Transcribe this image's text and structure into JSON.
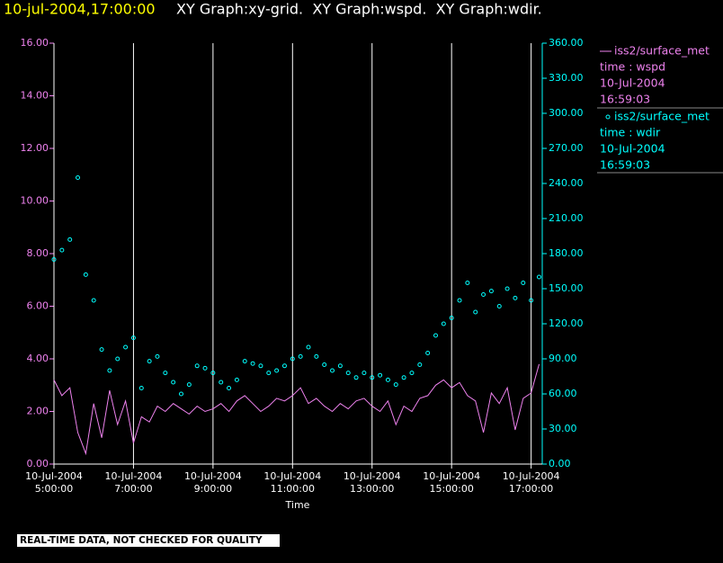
{
  "chart_data": {
    "type": "line_scatter_dual",
    "title_time": "10-jul-2004,17:00:00",
    "title": "XY Graph:xy-grid.  XY Graph:wspd.  XY Graph:wdir.",
    "xlabel": "Time",
    "note": "REAL-TIME DATA, NOT CHECKED FOR QUALITY",
    "xlim": [
      5,
      17.28
    ],
    "xticks": [
      {
        "value": 5,
        "label": "10-Jul-2004\n5:00:00"
      },
      {
        "value": 7,
        "label": "10-Jul-2004\n7:00:00"
      },
      {
        "value": 9,
        "label": "10-Jul-2004\n9:00:00"
      },
      {
        "value": 11,
        "label": "10-Jul-2004\n11:00:00"
      },
      {
        "value": 13,
        "label": "10-Jul-2004\n13:00:00"
      },
      {
        "value": 15,
        "label": "10-Jul-2004\n15:00:00"
      },
      {
        "value": 17,
        "label": "10-Jul-2004\n17:00:00"
      }
    ],
    "grid": "x",
    "ylim": [
      0,
      16
    ],
    "yticks": [
      {
        "value": 0,
        "label": "0.00"
      },
      {
        "value": 2,
        "label": "2.00"
      },
      {
        "value": 4,
        "label": "4.00"
      },
      {
        "value": 6,
        "label": "6.00"
      },
      {
        "value": 8,
        "label": "8.00"
      },
      {
        "value": 10,
        "label": "10.00"
      },
      {
        "value": 12,
        "label": "12.00"
      },
      {
        "value": 14,
        "label": "14.00"
      },
      {
        "value": 16,
        "label": "16.00"
      }
    ],
    "y2lim": [
      0,
      360
    ],
    "y2ticks": [
      {
        "value": 0,
        "label": "0.00"
      },
      {
        "value": 30,
        "label": "30.00"
      },
      {
        "value": 60,
        "label": "60.00"
      },
      {
        "value": 90,
        "label": "90.00"
      },
      {
        "value": 120,
        "label": "120.00"
      },
      {
        "value": 150,
        "label": "150.00"
      },
      {
        "value": 180,
        "label": "180.00"
      },
      {
        "value": 210,
        "label": "210.00"
      },
      {
        "value": 240,
        "label": "240.00"
      },
      {
        "value": 270,
        "label": "270.00"
      },
      {
        "value": 300,
        "label": "300.00"
      },
      {
        "value": 330,
        "label": "330.00"
      },
      {
        "value": 360,
        "label": "360.00"
      }
    ],
    "x": [
      5.0,
      5.2,
      5.4,
      5.6,
      5.8,
      6.0,
      6.2,
      6.4,
      6.6,
      6.8,
      7.0,
      7.2,
      7.4,
      7.6,
      7.8,
      8.0,
      8.2,
      8.4,
      8.6,
      8.8,
      9.0,
      9.2,
      9.4,
      9.6,
      9.8,
      10.0,
      10.2,
      10.4,
      10.6,
      10.8,
      11.0,
      11.2,
      11.4,
      11.6,
      11.8,
      12.0,
      12.2,
      12.4,
      12.6,
      12.8,
      13.0,
      13.2,
      13.4,
      13.6,
      13.8,
      14.0,
      14.2,
      14.4,
      14.6,
      14.8,
      15.0,
      15.2,
      15.4,
      15.6,
      15.8,
      16.0,
      16.2,
      16.4,
      16.6,
      16.8,
      17.0,
      17.2
    ],
    "series": [
      {
        "name": "iss2/surface_met",
        "legend_lines": [
          "time : wspd",
          "10-Jul-2004",
          "16:59:03"
        ],
        "mark": "line",
        "color": "#ee82ee",
        "axis": "y",
        "values": [
          3.2,
          2.6,
          2.9,
          1.2,
          0.4,
          2.3,
          1.0,
          2.8,
          1.5,
          2.4,
          0.8,
          1.8,
          1.6,
          2.2,
          2.0,
          2.3,
          2.1,
          1.9,
          2.2,
          2.0,
          2.1,
          2.3,
          2.0,
          2.4,
          2.6,
          2.3,
          2.0,
          2.2,
          2.5,
          2.4,
          2.6,
          2.9,
          2.3,
          2.5,
          2.2,
          2.0,
          2.3,
          2.1,
          2.4,
          2.5,
          2.2,
          2.0,
          2.4,
          1.5,
          2.2,
          2.0,
          2.5,
          2.6,
          3.0,
          3.2,
          2.9,
          3.1,
          2.6,
          2.4,
          1.2,
          2.7,
          2.3,
          2.9,
          1.3,
          2.5,
          2.7,
          3.8
        ]
      },
      {
        "name": "iss2/surface_met",
        "legend_lines": [
          "time : wdir",
          "10-Jul-2004",
          "16:59:03"
        ],
        "mark": "scatter",
        "color": "#00ffff",
        "axis": "y2",
        "values": [
          175,
          183,
          192,
          245,
          162,
          140,
          98,
          80,
          90,
          100,
          108,
          65,
          88,
          92,
          78,
          70,
          60,
          68,
          84,
          82,
          78,
          70,
          65,
          72,
          88,
          86,
          84,
          78,
          80,
          84,
          90,
          92,
          100,
          92,
          85,
          80,
          84,
          78,
          74,
          78,
          74,
          76,
          72,
          68,
          74,
          78,
          85,
          95,
          110,
          120,
          125,
          140,
          155,
          130,
          145,
          148,
          135,
          150,
          142,
          155,
          140,
          160
        ]
      }
    ]
  }
}
